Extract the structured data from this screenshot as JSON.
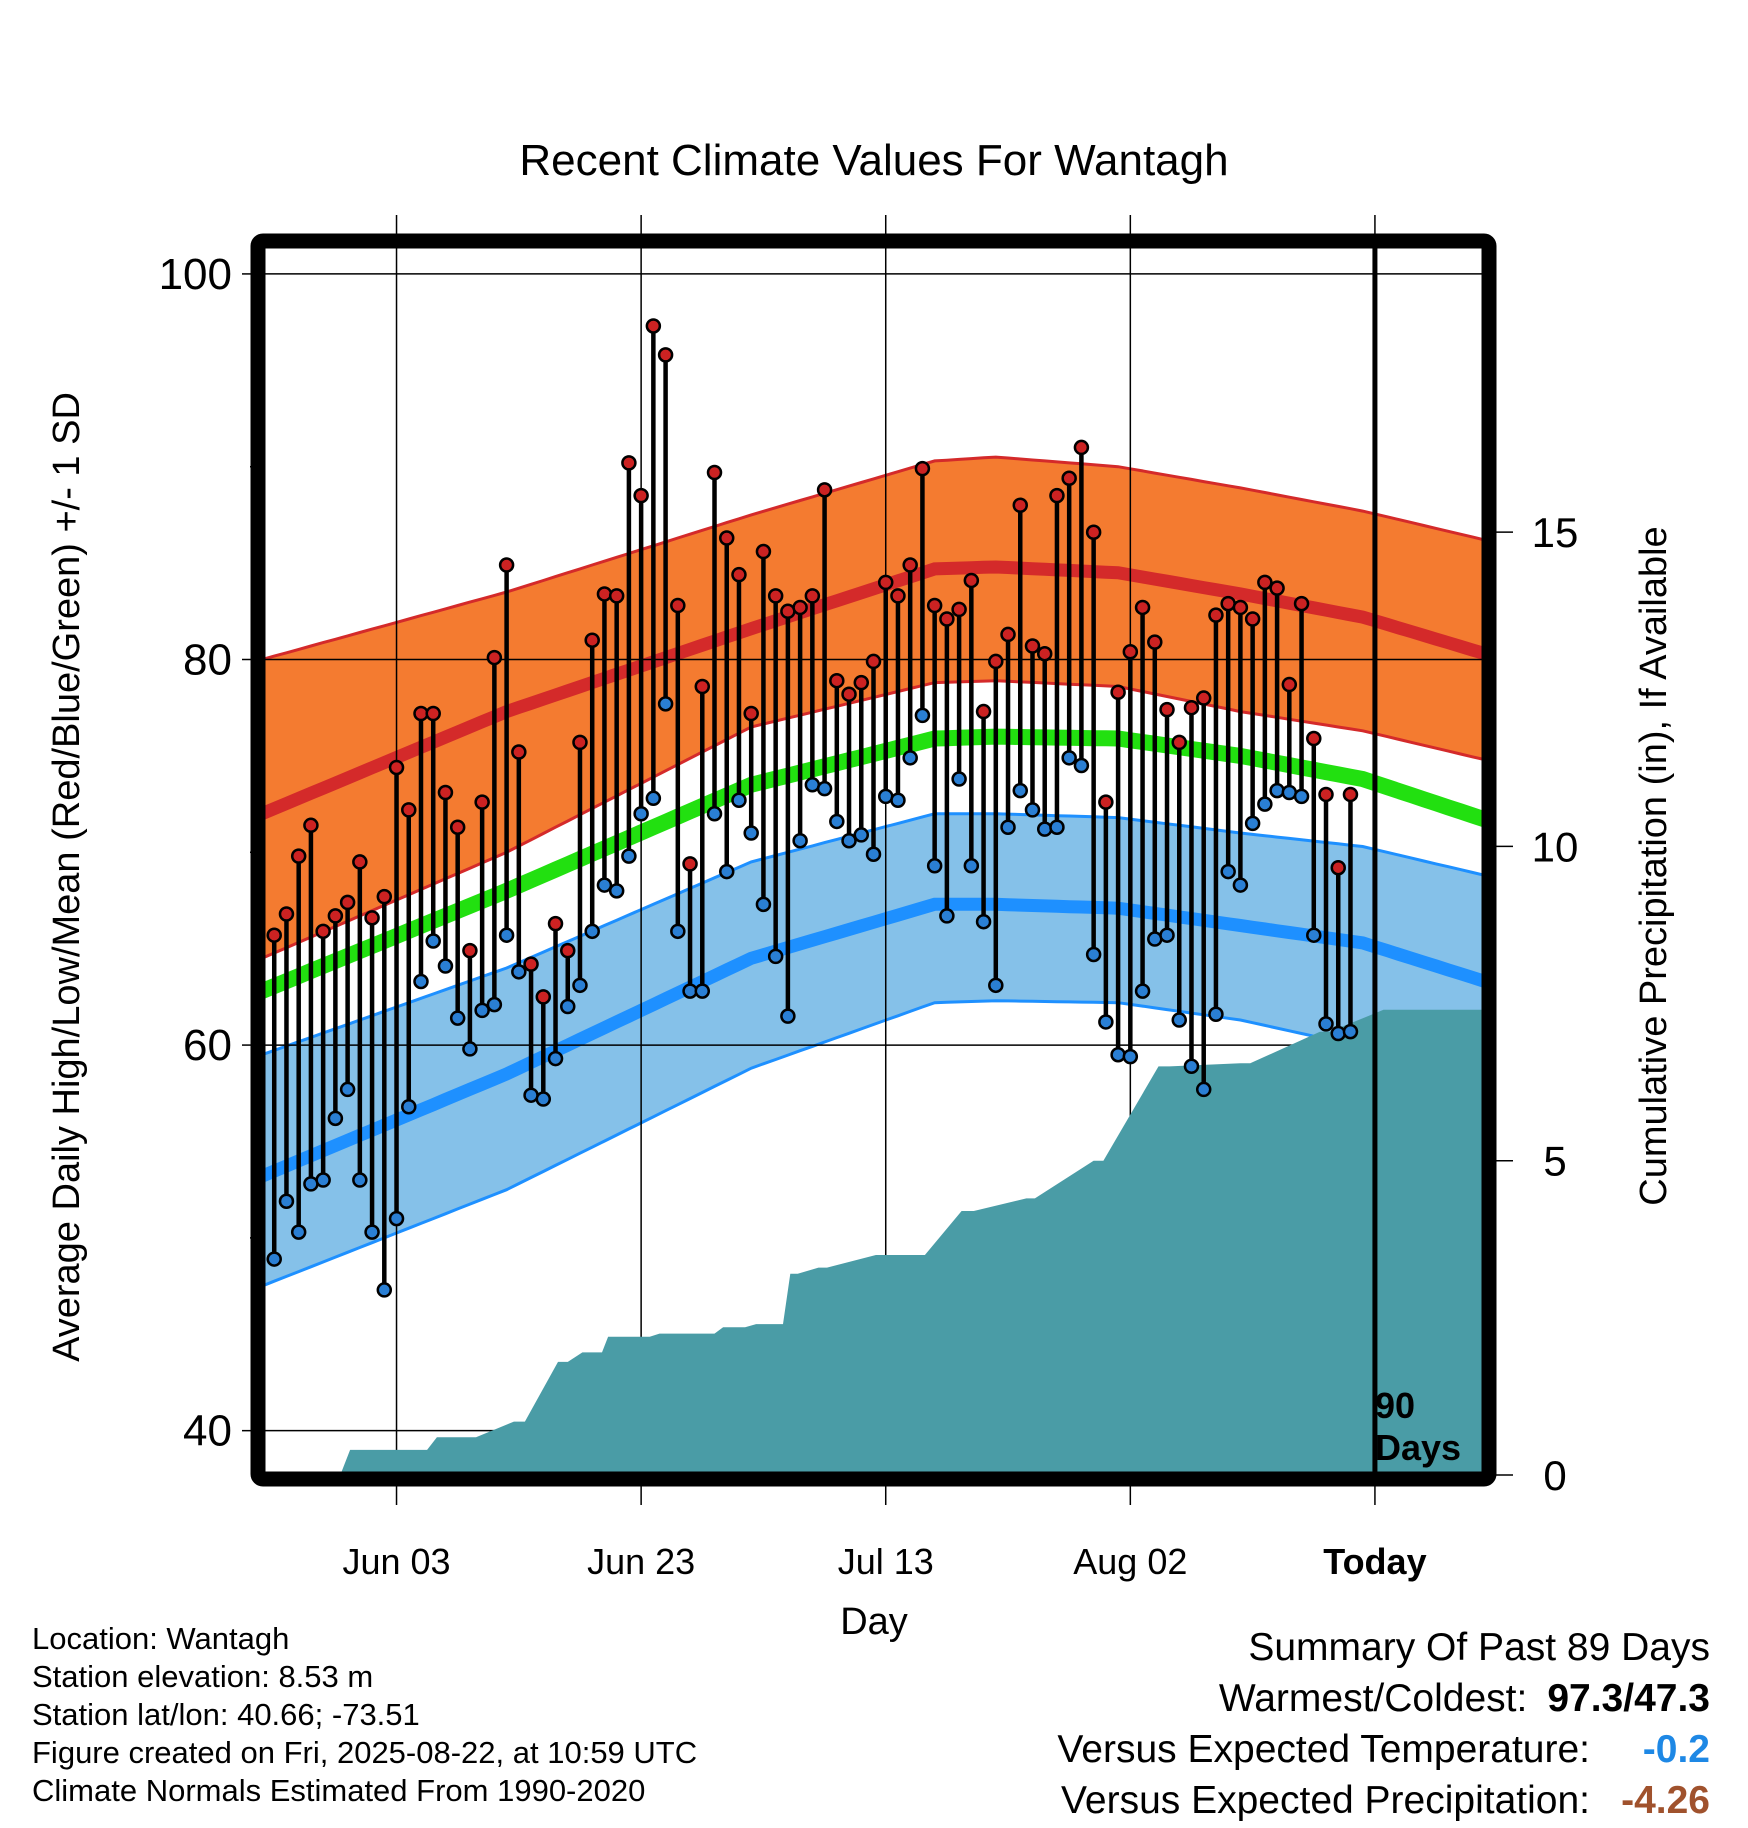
{
  "title": "Recent Climate Values For Wantagh",
  "ylabel": "Average Daily High/Low/Mean (Red/Blue/Green) +/- 1 SD",
  "ylabel_right": "Cumulative Precipitation (in), If Available",
  "xlabel": "Day",
  "today_marker": {
    "line1": "90",
    "line2": "Days"
  },
  "info": {
    "location": "Location: Wantagh",
    "elevation": "Station elevation: 8.53 m",
    "latlon": "Station lat/lon: 40.66; -73.51",
    "created": "Figure created on Fri, 2025-08-22, at 10:59 UTC",
    "normals": "Climate Normals Estimated From 1990-2020"
  },
  "summary": {
    "heading": "Summary Of Past 89 Days",
    "warm_cold_label": "Warmest/Coldest:",
    "warm_cold_value": "97.3/47.3",
    "temp_label": "Versus Expected Temperature:",
    "temp_value": "-0.2",
    "temp_color": "#1e88e5",
    "precip_label": "Versus Expected Precipitation:",
    "precip_value": "-4.26",
    "precip_color": "#a0522d"
  },
  "colors": {
    "high_band": "#f47b30",
    "high_mean": "#d42a2a",
    "low_band": "#85c1e9",
    "low_mean": "#1e90ff",
    "mean_line": "#22e010",
    "precip_fill": "#4a9ca6",
    "high_marker": "#cc2222",
    "low_marker": "#2a7fd4"
  },
  "chart_data": {
    "type": "line",
    "title": "Recent Climate Values For Wantagh",
    "x_tick_labels": [
      "Jun 03",
      "Jun 23",
      "Jul 13",
      "Aug 02",
      "Today"
    ],
    "x_tick_days": [
      11,
      31,
      51,
      71,
      91
    ],
    "x_range_days": [
      0,
      100
    ],
    "ylim": [
      37.7,
      101.5
    ],
    "y_ticks": [
      40,
      60,
      80,
      100
    ],
    "y_minor_ticks": [
      50,
      70,
      90
    ],
    "y2_ticks": [
      0,
      5,
      10,
      15
    ],
    "y2_scale": {
      "inches_0_at_temp": 37.7,
      "inches_per_degree": 0.3067
    },
    "normals": {
      "day": [
        0,
        20,
        40,
        55,
        60,
        70,
        80,
        90,
        100
      ],
      "high_mean": [
        72,
        77.3,
        81.6,
        84.7,
        84.8,
        84.5,
        83.4,
        82.2,
        80.3
      ],
      "high_sd_upper": [
        80,
        83.5,
        87.5,
        90.3,
        90.5,
        90,
        88.9,
        87.7,
        86.2
      ],
      "high_sd_lower": [
        64.5,
        70,
        76.5,
        78.8,
        78.9,
        78.6,
        77.3,
        76.3,
        74.8
      ],
      "mean": [
        62.8,
        68,
        73.5,
        75.9,
        76,
        75.9,
        75,
        73.8,
        71.7
      ],
      "low_mean": [
        53.2,
        58.5,
        64.5,
        67.3,
        67.3,
        67.1,
        66.2,
        65.3,
        63.3
      ],
      "low_sd_upper": [
        59.5,
        64,
        69.5,
        72,
        72,
        71.8,
        71,
        70.3,
        68.8
      ],
      "low_sd_lower": [
        47.5,
        52.5,
        58.8,
        62.2,
        62.3,
        62.2,
        61.3,
        59.9,
        57.5
      ]
    },
    "daily": {
      "day": [
        1,
        2,
        3,
        4,
        5,
        6,
        7,
        8,
        9,
        10,
        11,
        12,
        13,
        14,
        15,
        16,
        17,
        18,
        19,
        20,
        21,
        22,
        23,
        24,
        25,
        26,
        27,
        28,
        29,
        30,
        31,
        32,
        33,
        34,
        35,
        36,
        37,
        38,
        39,
        40,
        41,
        42,
        43,
        44,
        45,
        46,
        47,
        48,
        49,
        50,
        51,
        52,
        53,
        54,
        55,
        56,
        57,
        58,
        59,
        60,
        61,
        62,
        63,
        64,
        65,
        66,
        67,
        68,
        69,
        70,
        71,
        72,
        73,
        74,
        75,
        76,
        77,
        78,
        79,
        80,
        81,
        82,
        83,
        84,
        85,
        86,
        87,
        88,
        89
      ],
      "high": [
        65.7,
        66.8,
        69.8,
        71.4,
        65.9,
        66.7,
        67.4,
        69.5,
        66.6,
        67.7,
        74.4,
        72.2,
        77.2,
        77.2,
        73.1,
        71.3,
        64.9,
        72.6,
        80.1,
        84.9,
        75.2,
        64.2,
        62.5,
        66.3,
        64.9,
        75.7,
        81,
        83.4,
        83.3,
        90.2,
        88.5,
        97.3,
        95.8,
        82.8,
        69.4,
        78.6,
        89.7,
        86.3,
        84.4,
        77.2,
        85.6,
        83.3,
        82.5,
        82.7,
        83.3,
        88.8,
        78.9,
        78.2,
        78.8,
        79.9,
        84,
        83.3,
        84.9,
        89.9,
        82.8,
        82.1,
        82.6,
        84.1,
        77.3,
        79.9,
        81.3,
        88,
        80.7,
        80.3,
        88.5,
        89.4,
        91,
        86.6,
        72.6,
        78.3,
        80.4,
        82.7,
        80.9,
        77.4,
        75.7,
        77.5,
        78,
        82.3,
        82.9,
        82.7,
        82.1,
        84,
        83.7,
        78.7,
        82.9,
        75.9,
        73,
        69.2,
        73
      ],
      "low": [
        48.9,
        51.9,
        50.3,
        52.8,
        53,
        56.2,
        57.7,
        53,
        50.3,
        47.3,
        51,
        56.8,
        63.3,
        65.4,
        64.1,
        61.4,
        59.8,
        61.8,
        62.1,
        65.7,
        63.8,
        57.4,
        57.2,
        59.3,
        62,
        63.1,
        65.9,
        68.3,
        68,
        69.8,
        72,
        72.8,
        77.7,
        65.9,
        62.8,
        62.8,
        72,
        69,
        72.7,
        71,
        67.3,
        64.6,
        61.5,
        70.6,
        73.5,
        73.3,
        71.6,
        70.6,
        70.9,
        69.9,
        72.9,
        72.7,
        74.9,
        77.1,
        69.3,
        66.7,
        73.8,
        69.3,
        66.4,
        63.1,
        71.3,
        73.2,
        72.2,
        71.2,
        71.3,
        74.9,
        74.5,
        64.7,
        61.2,
        59.5,
        59.4,
        62.8,
        65.5,
        65.7,
        61.3,
        58.9,
        57.7,
        61.6,
        69,
        68.3,
        71.5,
        72.5,
        73.2,
        73.1,
        72.9,
        65.7,
        61.1,
        60.6,
        60.7
      ]
    },
    "precip": {
      "day": [
        6.4,
        7.2,
        13.5,
        14.3,
        17.5,
        20.6,
        21.5,
        24.2,
        25,
        26.2,
        27.8,
        28.3,
        31.7,
        32.5,
        37,
        37.7,
        39.5,
        40.4,
        42.6,
        43.2,
        43.8,
        45.5,
        46.2,
        50.2,
        51.2,
        53.5,
        54.2,
        57.2,
        58.2,
        62.5,
        63.2,
        68,
        68.8,
        73.3,
        74.2,
        80,
        80.8,
        86.5,
        87.3,
        91.7,
        92.5,
        100
      ],
      "inches": [
        0,
        0.4,
        0.4,
        0.6,
        0.6,
        0.85,
        0.85,
        1.8,
        1.8,
        1.95,
        1.95,
        2.2,
        2.2,
        2.25,
        2.25,
        2.35,
        2.35,
        2.4,
        2.4,
        3.2,
        3.2,
        3.3,
        3.3,
        3.5,
        3.5,
        3.5,
        3.5,
        4.2,
        4.2,
        4.4,
        4.4,
        5,
        5,
        6.5,
        6.5,
        6.55,
        6.55,
        7.05,
        7.05,
        7.4,
        7.4,
        7.4
      ]
    }
  }
}
